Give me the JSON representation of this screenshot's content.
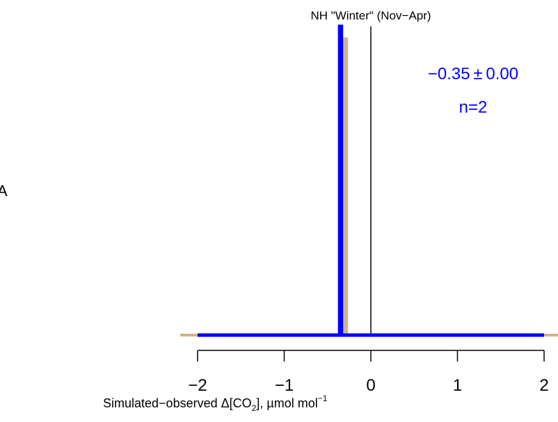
{
  "chart_data": {
    "type": "line",
    "title": "NH \"Winter\" (Nov−Apr)",
    "xlabel_parts": {
      "pre": "Simulated−observed Δ[CO",
      "sub": "2",
      "mid": "], µmol mol",
      "sup": "−1"
    },
    "xlim": [
      -2,
      2
    ],
    "ticks": [
      {
        "value": -2,
        "label": "−2"
      },
      {
        "value": -1,
        "label": "−1"
      },
      {
        "value": 0,
        "label": "0"
      },
      {
        "value": 1,
        "label": "1"
      },
      {
        "value": 2,
        "label": "2"
      }
    ],
    "reference_line_x": 0,
    "series": [
      {
        "color": "#d2b48c",
        "points": [
          [
            -2.2,
            0
          ],
          [
            -0.31,
            0
          ],
          [
            -0.31,
            0.96
          ],
          [
            -0.28,
            0.96
          ],
          [
            -0.28,
            0
          ],
          [
            2.2,
            0
          ]
        ]
      },
      {
        "color": "#0000ff",
        "points": [
          [
            -2,
            0
          ],
          [
            -0.36,
            0
          ],
          [
            -0.36,
            1
          ],
          [
            -0.34,
            1
          ],
          [
            -0.34,
            0
          ],
          [
            2,
            0
          ]
        ]
      }
    ],
    "annotation": {
      "mean_sd": "−0.35 ± 0.00",
      "count": "n=2",
      "color": "#0000ff"
    },
    "left_edge_label": "A"
  }
}
